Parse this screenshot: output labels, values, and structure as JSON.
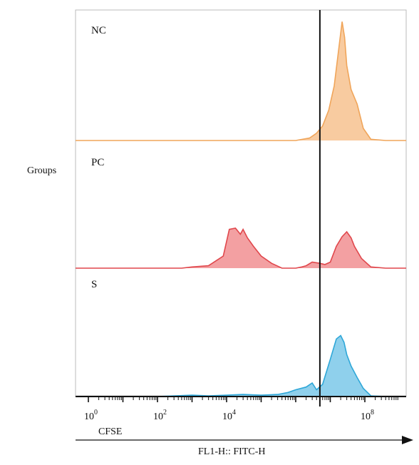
{
  "chart_data": {
    "type": "area",
    "ylabel": "Groups",
    "xaxis_name": "CFSE",
    "xlabel": "FL1-H:: FITC-H",
    "x_scale": "log10",
    "xlim": [
      1,
      1000000000
    ],
    "x_ticks": [
      {
        "base": "10",
        "exp": "0",
        "value": 1
      },
      {
        "base": "10",
        "exp": "2",
        "value": 100
      },
      {
        "base": "10",
        "exp": "4",
        "value": 10000
      },
      {
        "base": "10",
        "exp": "8",
        "value": 100000000
      }
    ],
    "gate_x": 5000000,
    "series": [
      {
        "name": "NC",
        "color": "#f0a55a",
        "fill": "#f8cba0",
        "x": [
          1,
          1000,
          1000000,
          2500000,
          4000000,
          6000000,
          9000000,
          13000000,
          18000000,
          22000000,
          26000000,
          30000000,
          40000000,
          60000000,
          90000000,
          150000000,
          400000000
        ],
        "y": [
          0,
          0,
          0,
          0.02,
          0.06,
          0.12,
          0.25,
          0.45,
          0.78,
          0.98,
          0.85,
          0.62,
          0.42,
          0.3,
          0.1,
          0.01,
          0
        ]
      },
      {
        "name": "PC",
        "color": "#e0474c",
        "fill": "#f3a0a2",
        "x": [
          1,
          300000,
          1000000,
          1500000,
          2000000,
          3000000,
          5000000,
          7000000,
          10000000,
          15000000,
          22000000,
          30000000,
          40000000,
          50000000,
          80000000,
          150000000,
          400000000
        ],
        "y": [
          0,
          0,
          0,
          0.01,
          0.02,
          0.05,
          0.04,
          0.03,
          0.05,
          0.18,
          0.26,
          0.3,
          0.25,
          0.18,
          0.08,
          0.01,
          0
        ]
      },
      {
        "name": "S",
        "color": "#2ea7d8",
        "fill": "#8fd0ec",
        "x": [
          1,
          30,
          60,
          100,
          300,
          1000,
          3000,
          10000,
          30000,
          100000,
          300000,
          600000,
          1000000,
          2000000,
          3000000,
          4000000,
          6000000,
          10000000,
          15000000,
          20000000,
          25000000,
          30000000,
          40000000,
          60000000,
          90000000,
          150000000,
          400000000
        ],
        "y": [
          0,
          0,
          0,
          0,
          0.01,
          0.02,
          0.01,
          0.02,
          0.03,
          0.02,
          0.03,
          0.06,
          0.1,
          0.14,
          0.2,
          0.1,
          0.18,
          0.55,
          0.85,
          0.9,
          0.8,
          0.62,
          0.45,
          0.28,
          0.12,
          0.01,
          0
        ]
      }
    ],
    "pc_clusters": {
      "x": [
        500,
        1000,
        3000,
        8000,
        12000,
        18000,
        25000,
        30000,
        40000,
        60000,
        100000,
        200000,
        400000
      ],
      "y": [
        0,
        0.01,
        0.02,
        0.1,
        0.32,
        0.33,
        0.28,
        0.32,
        0.25,
        0.18,
        0.1,
        0.04,
        0
      ]
    }
  }
}
